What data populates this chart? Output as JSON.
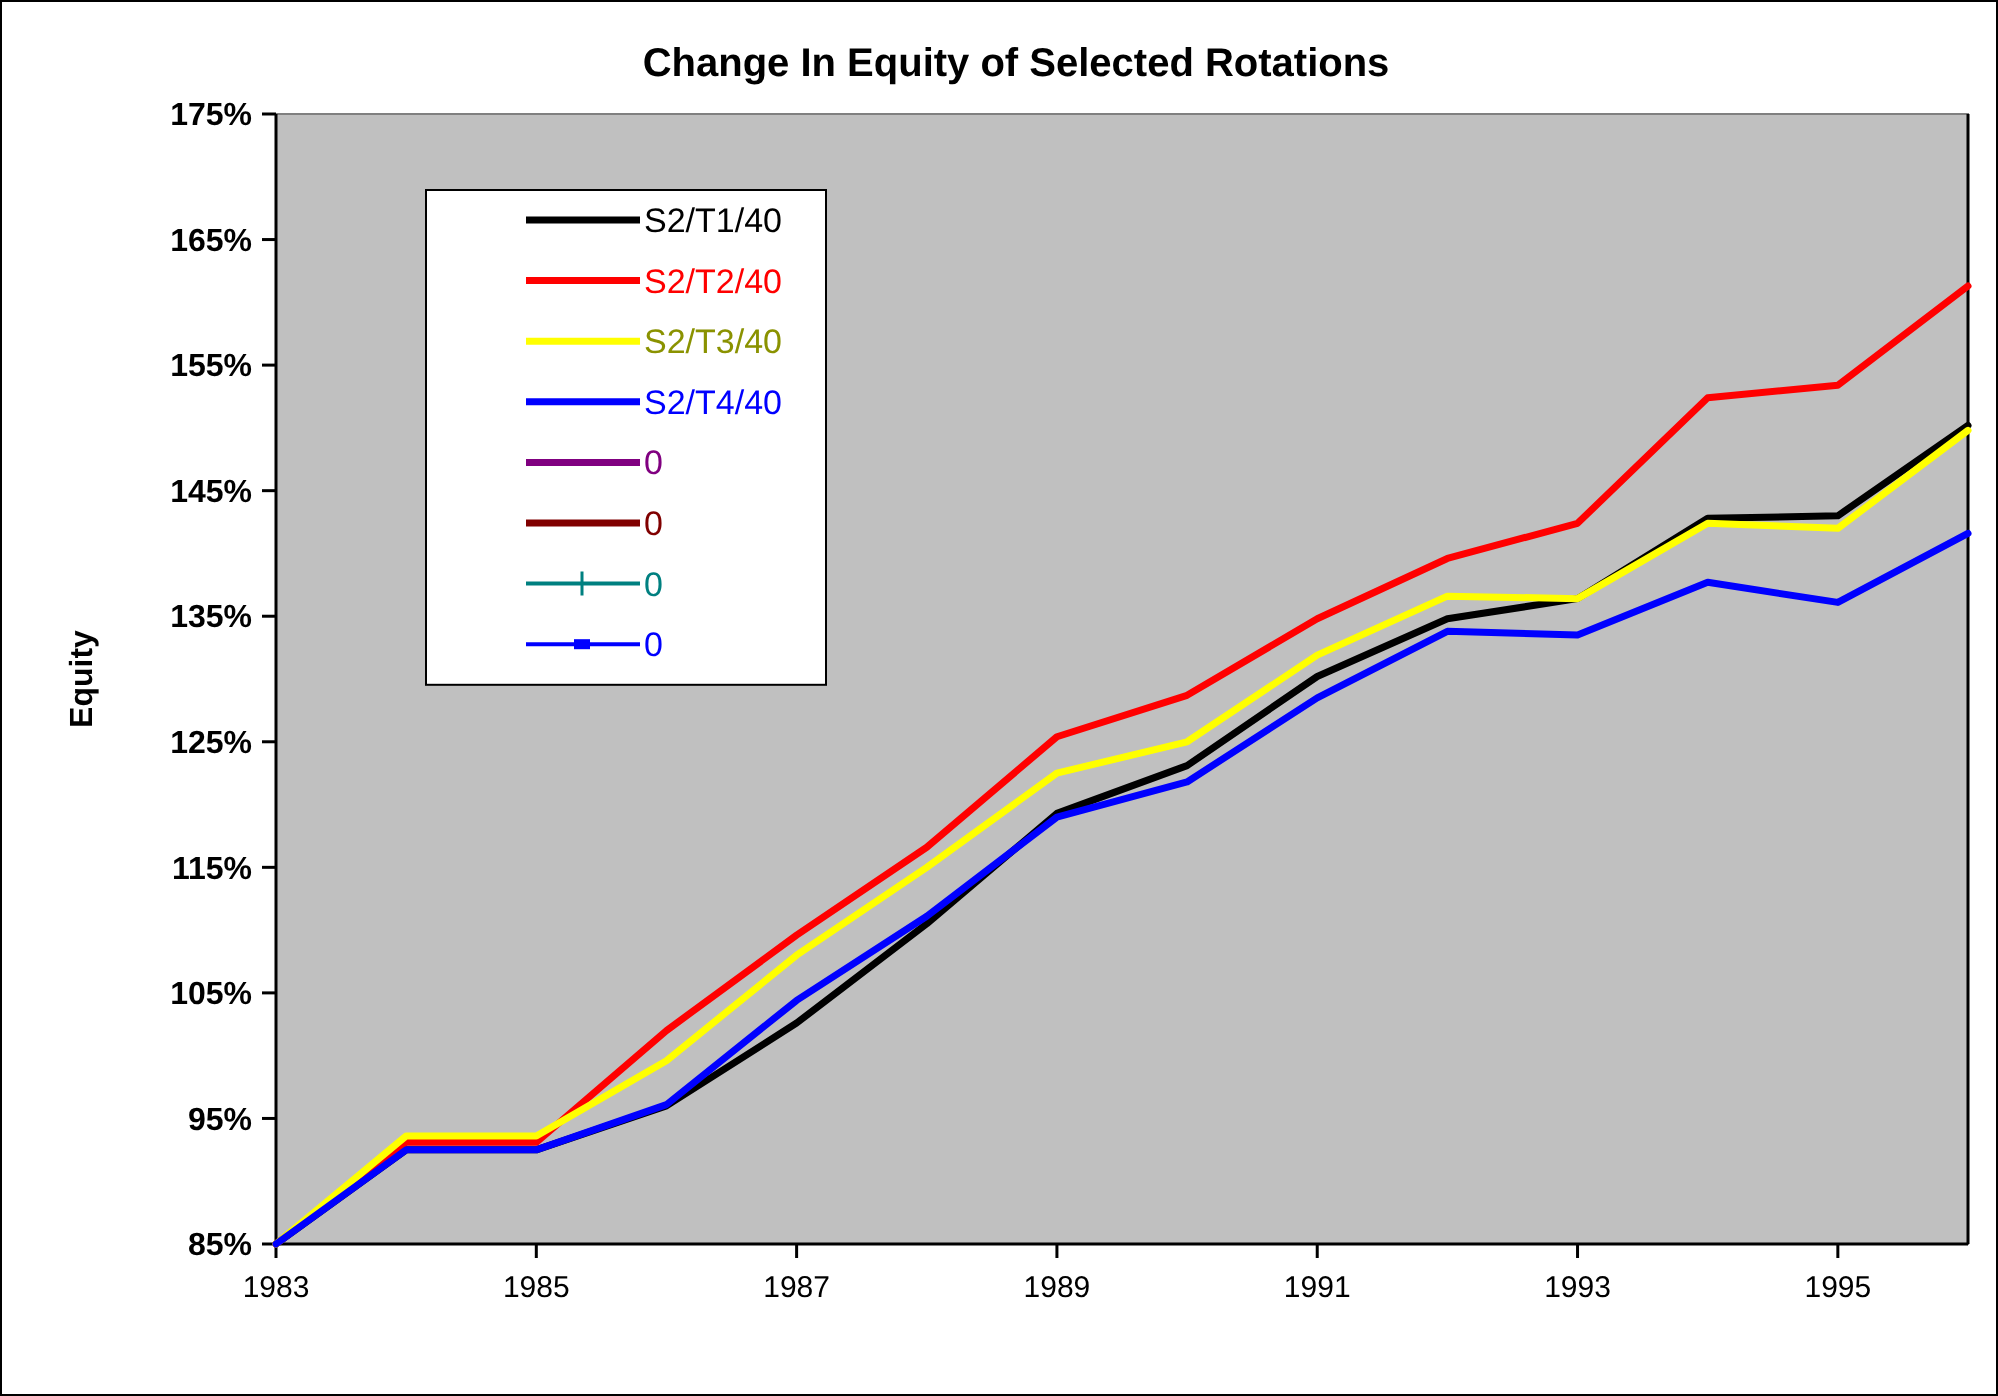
{
  "chart_data": {
    "type": "line",
    "title": "Change In Equity of Selected Rotations",
    "ylabel": "Equity",
    "x": [
      1983,
      1984,
      1985,
      1986,
      1987,
      1988,
      1989,
      1990,
      1991,
      1992,
      1993,
      1994,
      1995,
      1996
    ],
    "xlim": [
      1983,
      1996
    ],
    "xticks": [
      1983,
      1985,
      1987,
      1989,
      1991,
      1993,
      1995
    ],
    "ylim": [
      85,
      175
    ],
    "yticks": [
      {
        "value": 85,
        "label": "85%"
      },
      {
        "value": 95,
        "label": "95%"
      },
      {
        "value": 105,
        "label": "105%"
      },
      {
        "value": 115,
        "label": "115%"
      },
      {
        "value": 125,
        "label": "125%"
      },
      {
        "value": 135,
        "label": "135%"
      },
      {
        "value": 145,
        "label": "145%"
      },
      {
        "value": 155,
        "label": "155%"
      },
      {
        "value": 165,
        "label": "165%"
      },
      {
        "value": 175,
        "label": "175%"
      }
    ],
    "grid": false,
    "legend": "top left",
    "marker": "none",
    "line_style": "solid",
    "series": [
      {
        "name": "S2/T1/40",
        "color": "#000000",
        "values": [
          85,
          92.5,
          92.5,
          96.0,
          102.6,
          110.5,
          119.3,
          123.1,
          130.2,
          134.8,
          136.4,
          142.8,
          143.0,
          150.2
        ]
      },
      {
        "name": "S2/T2/40",
        "color": "#ff0000",
        "values": [
          85,
          93.1,
          93.1,
          102.0,
          109.6,
          116.6,
          125.4,
          128.7,
          134.8,
          139.6,
          142.4,
          152.4,
          153.4,
          161.3
        ]
      },
      {
        "name": "S2/T3/40",
        "color": "#ffff00",
        "values": [
          85,
          93.6,
          93.6,
          99.6,
          108.0,
          115.0,
          122.5,
          125.0,
          131.9,
          136.6,
          136.4,
          142.4,
          142.0,
          149.8
        ]
      },
      {
        "name": "S2/T4/40",
        "color": "#0000ff",
        "values": [
          85,
          92.5,
          92.5,
          96.1,
          104.4,
          111.1,
          119.0,
          121.8,
          128.5,
          133.8,
          133.5,
          137.7,
          136.1,
          141.6
        ]
      },
      {
        "name": "0",
        "color": "#800080",
        "values": [
          null,
          null,
          null,
          null,
          null,
          null,
          null,
          null,
          null,
          null,
          null,
          null,
          null,
          null
        ]
      },
      {
        "name": "0",
        "color": "#800000",
        "values": [
          null,
          null,
          null,
          null,
          null,
          null,
          null,
          null,
          null,
          null,
          null,
          null,
          null,
          null
        ]
      },
      {
        "name": "0",
        "color": "#008080",
        "marker": "cross",
        "values": [
          null,
          null,
          null,
          null,
          null,
          null,
          null,
          null,
          null,
          null,
          null,
          null,
          null,
          null
        ]
      },
      {
        "name": "0",
        "color": "#0000ff",
        "marker": "square",
        "values": [
          null,
          null,
          null,
          null,
          null,
          null,
          null,
          null,
          null,
          null,
          null,
          null,
          null,
          null
        ]
      }
    ]
  }
}
